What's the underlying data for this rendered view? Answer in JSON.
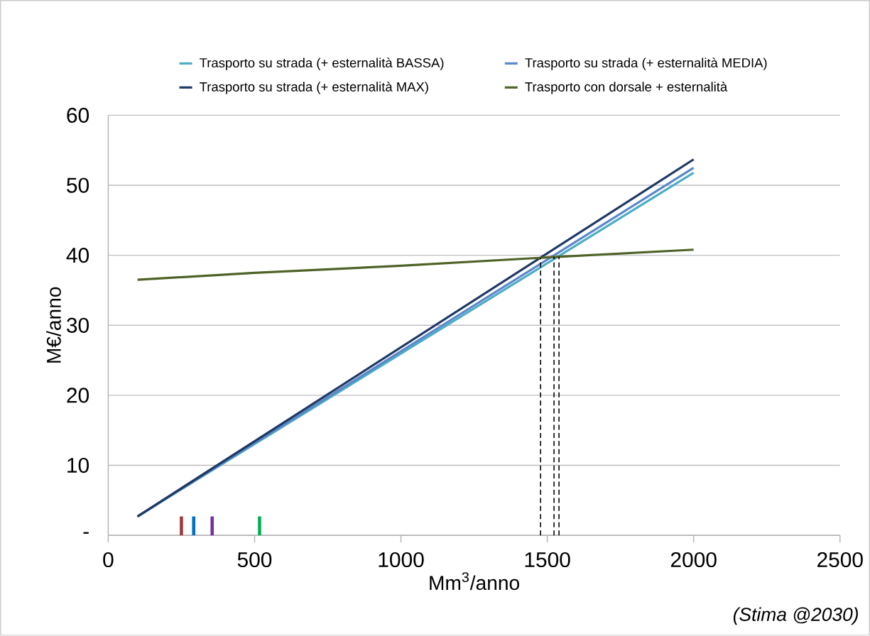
{
  "chart_data": {
    "type": "line",
    "xlabel": "Mm$^{3}$/anno",
    "ylabel": "M€/anno",
    "xlim": [
      0,
      2500
    ],
    "ylim": [
      0,
      60
    ],
    "xticks": [
      0,
      500,
      1000,
      1500,
      2000,
      2500
    ],
    "yticks": [
      {
        "value": 0,
        "label": "-"
      },
      10,
      20,
      30,
      40,
      50,
      60
    ],
    "grid": "y",
    "legend": "top",
    "marker": "none",
    "line_style": "solid",
    "series": [
      {
        "name": "Trasporto su strada (+ esternalità BASSA)",
        "color": "#4bacc6",
        "x": [
          100,
          2000
        ],
        "values": [
          2.7,
          51.8
        ]
      },
      {
        "name": "Trasporto su strada (+ esternalità MEDIA)",
        "color": "#5b87c9",
        "x": [
          100,
          2000
        ],
        "values": [
          2.7,
          52.5
        ]
      },
      {
        "name": "Trasporto su strada (+ esternalità MAX)",
        "color": "#1f3864",
        "x": [
          100,
          2000
        ],
        "values": [
          2.7,
          53.7
        ]
      },
      {
        "name": "Trasporto con dorsale + esternalità",
        "color": "#4f6228",
        "x": [
          100,
          500,
          1000,
          1500,
          2000
        ],
        "values": [
          36.5,
          37.5,
          38.5,
          39.7,
          40.8
        ]
      },
      {
        "color": "#a0393a",
        "x": [
          250,
          250
        ],
        "values": [
          0,
          2.7
        ]
      },
      {
        "color": "#0070c0",
        "x": [
          292,
          292
        ],
        "values": [
          0,
          2.7
        ]
      },
      {
        "color": "#7030a0",
        "x": [
          355,
          355
        ],
        "values": [
          0,
          2.7
        ]
      },
      {
        "color": "#00b050",
        "x": [
          517,
          517
        ],
        "values": [
          0,
          2.7
        ]
      }
    ],
    "ref_lines": [
      {
        "axis": "x",
        "value": 1477,
        "color": "#000000",
        "line_style": "dashed"
      },
      {
        "axis": "x",
        "value": 1523,
        "color": "#000000",
        "line_style": "dashed"
      },
      {
        "axis": "x",
        "value": 1540,
        "color": "#000000",
        "line_style": "dashed"
      }
    ],
    "annotations": [
      "(Stima @2030)"
    ]
  }
}
